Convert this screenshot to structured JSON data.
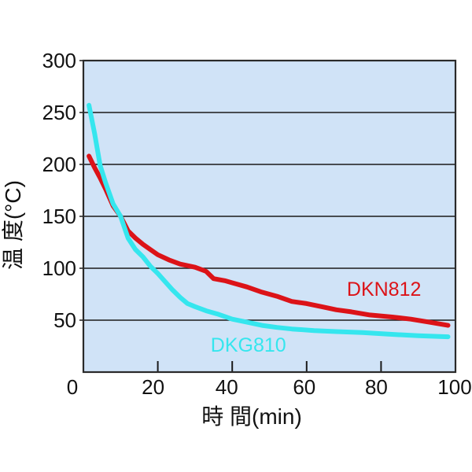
{
  "chart_data": {
    "type": "line",
    "title": "",
    "xlabel": "時 間(min)",
    "ylabel": "温 度(°C)",
    "xlim": [
      0,
      100
    ],
    "ylim": [
      0,
      300
    ],
    "x_ticks": [
      0,
      20,
      40,
      60,
      80,
      100
    ],
    "y_ticks": [
      50,
      100,
      150,
      200,
      250,
      300
    ],
    "grid": "horizontal",
    "legend_position": "inline-labels",
    "plot_bg": "#d0e3f7",
    "grid_color": "#1a1a1a",
    "border_color": "#2a2a2a",
    "text_color": "#111111",
    "series": [
      {
        "name": "DKN812",
        "color": "#dc1318",
        "label_at": [
          70.8,
          73.5
        ],
        "points": [
          [
            1.5,
            208
          ],
          [
            3,
            197
          ],
          [
            4.5,
            187
          ],
          [
            6,
            176
          ],
          [
            8,
            160
          ],
          [
            10,
            150
          ],
          [
            12,
            136
          ],
          [
            14,
            129
          ],
          [
            16,
            123
          ],
          [
            18,
            118
          ],
          [
            20,
            113
          ],
          [
            23,
            108
          ],
          [
            26,
            104
          ],
          [
            30,
            101
          ],
          [
            33,
            97
          ],
          [
            35,
            90
          ],
          [
            38,
            88
          ],
          [
            40,
            86
          ],
          [
            44,
            82
          ],
          [
            48,
            77
          ],
          [
            52,
            73
          ],
          [
            56,
            68
          ],
          [
            60,
            66
          ],
          [
            64,
            63
          ],
          [
            68,
            60
          ],
          [
            72,
            58
          ],
          [
            77,
            55
          ],
          [
            83,
            53
          ],
          [
            88,
            51
          ],
          [
            93,
            48
          ],
          [
            98,
            45
          ]
        ]
      },
      {
        "name": "DKG810",
        "color": "#35e6ee",
        "label_at": [
          34.2,
          19.7
        ],
        "points": [
          [
            1.5,
            257
          ],
          [
            3,
            230
          ],
          [
            4.5,
            199
          ],
          [
            6,
            182
          ],
          [
            8,
            162
          ],
          [
            10,
            150
          ],
          [
            12,
            129
          ],
          [
            14,
            118
          ],
          [
            16,
            111
          ],
          [
            18,
            102
          ],
          [
            20,
            95
          ],
          [
            22,
            87
          ],
          [
            24,
            79
          ],
          [
            26,
            72
          ],
          [
            28,
            66
          ],
          [
            30,
            63
          ],
          [
            33,
            59
          ],
          [
            36,
            56
          ],
          [
            40,
            51
          ],
          [
            44,
            48
          ],
          [
            48,
            45
          ],
          [
            52,
            43
          ],
          [
            56,
            41.5
          ],
          [
            62,
            40
          ],
          [
            68,
            39
          ],
          [
            75,
            38
          ],
          [
            82,
            36.5
          ],
          [
            90,
            35
          ],
          [
            98,
            34
          ]
        ]
      }
    ]
  }
}
